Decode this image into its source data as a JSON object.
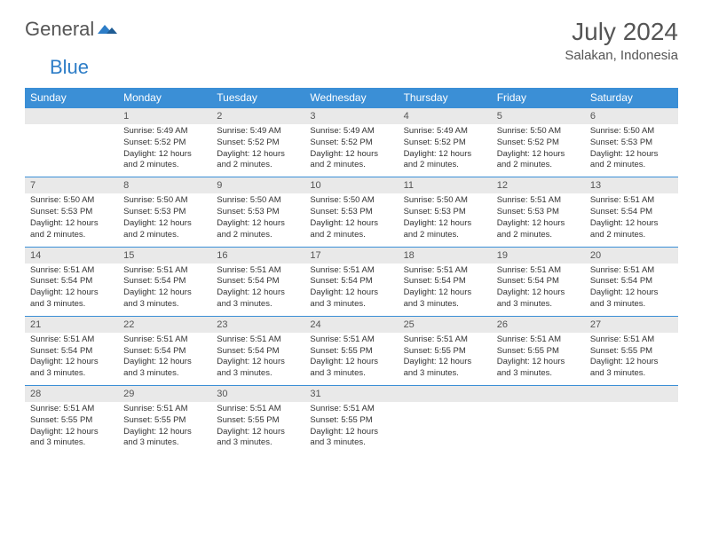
{
  "logo": {
    "text_general": "General",
    "text_blue": "Blue",
    "icon_color": "#2d7dc7"
  },
  "title": "July 2024",
  "location": "Salakan, Indonesia",
  "colors": {
    "header_bg": "#3b8fd6",
    "header_text": "#ffffff",
    "date_bg": "#e9e9e9",
    "rule": "#3b8fd6",
    "body_text": "#333333",
    "title_text": "#555555"
  },
  "days_of_week": [
    "Sunday",
    "Monday",
    "Tuesday",
    "Wednesday",
    "Thursday",
    "Friday",
    "Saturday"
  ],
  "weeks": [
    {
      "dates": [
        "",
        "1",
        "2",
        "3",
        "4",
        "5",
        "6"
      ],
      "info": [
        "",
        "Sunrise: 5:49 AM\nSunset: 5:52 PM\nDaylight: 12 hours and 2 minutes.",
        "Sunrise: 5:49 AM\nSunset: 5:52 PM\nDaylight: 12 hours and 2 minutes.",
        "Sunrise: 5:49 AM\nSunset: 5:52 PM\nDaylight: 12 hours and 2 minutes.",
        "Sunrise: 5:49 AM\nSunset: 5:52 PM\nDaylight: 12 hours and 2 minutes.",
        "Sunrise: 5:50 AM\nSunset: 5:52 PM\nDaylight: 12 hours and 2 minutes.",
        "Sunrise: 5:50 AM\nSunset: 5:53 PM\nDaylight: 12 hours and 2 minutes."
      ]
    },
    {
      "dates": [
        "7",
        "8",
        "9",
        "10",
        "11",
        "12",
        "13"
      ],
      "info": [
        "Sunrise: 5:50 AM\nSunset: 5:53 PM\nDaylight: 12 hours and 2 minutes.",
        "Sunrise: 5:50 AM\nSunset: 5:53 PM\nDaylight: 12 hours and 2 minutes.",
        "Sunrise: 5:50 AM\nSunset: 5:53 PM\nDaylight: 12 hours and 2 minutes.",
        "Sunrise: 5:50 AM\nSunset: 5:53 PM\nDaylight: 12 hours and 2 minutes.",
        "Sunrise: 5:50 AM\nSunset: 5:53 PM\nDaylight: 12 hours and 2 minutes.",
        "Sunrise: 5:51 AM\nSunset: 5:53 PM\nDaylight: 12 hours and 2 minutes.",
        "Sunrise: 5:51 AM\nSunset: 5:54 PM\nDaylight: 12 hours and 2 minutes."
      ]
    },
    {
      "dates": [
        "14",
        "15",
        "16",
        "17",
        "18",
        "19",
        "20"
      ],
      "info": [
        "Sunrise: 5:51 AM\nSunset: 5:54 PM\nDaylight: 12 hours and 3 minutes.",
        "Sunrise: 5:51 AM\nSunset: 5:54 PM\nDaylight: 12 hours and 3 minutes.",
        "Sunrise: 5:51 AM\nSunset: 5:54 PM\nDaylight: 12 hours and 3 minutes.",
        "Sunrise: 5:51 AM\nSunset: 5:54 PM\nDaylight: 12 hours and 3 minutes.",
        "Sunrise: 5:51 AM\nSunset: 5:54 PM\nDaylight: 12 hours and 3 minutes.",
        "Sunrise: 5:51 AM\nSunset: 5:54 PM\nDaylight: 12 hours and 3 minutes.",
        "Sunrise: 5:51 AM\nSunset: 5:54 PM\nDaylight: 12 hours and 3 minutes."
      ]
    },
    {
      "dates": [
        "21",
        "22",
        "23",
        "24",
        "25",
        "26",
        "27"
      ],
      "info": [
        "Sunrise: 5:51 AM\nSunset: 5:54 PM\nDaylight: 12 hours and 3 minutes.",
        "Sunrise: 5:51 AM\nSunset: 5:54 PM\nDaylight: 12 hours and 3 minutes.",
        "Sunrise: 5:51 AM\nSunset: 5:54 PM\nDaylight: 12 hours and 3 minutes.",
        "Sunrise: 5:51 AM\nSunset: 5:55 PM\nDaylight: 12 hours and 3 minutes.",
        "Sunrise: 5:51 AM\nSunset: 5:55 PM\nDaylight: 12 hours and 3 minutes.",
        "Sunrise: 5:51 AM\nSunset: 5:55 PM\nDaylight: 12 hours and 3 minutes.",
        "Sunrise: 5:51 AM\nSunset: 5:55 PM\nDaylight: 12 hours and 3 minutes."
      ]
    },
    {
      "dates": [
        "28",
        "29",
        "30",
        "31",
        "",
        "",
        ""
      ],
      "info": [
        "Sunrise: 5:51 AM\nSunset: 5:55 PM\nDaylight: 12 hours and 3 minutes.",
        "Sunrise: 5:51 AM\nSunset: 5:55 PM\nDaylight: 12 hours and 3 minutes.",
        "Sunrise: 5:51 AM\nSunset: 5:55 PM\nDaylight: 12 hours and 3 minutes.",
        "Sunrise: 5:51 AM\nSunset: 5:55 PM\nDaylight: 12 hours and 3 minutes.",
        "",
        "",
        ""
      ]
    }
  ]
}
